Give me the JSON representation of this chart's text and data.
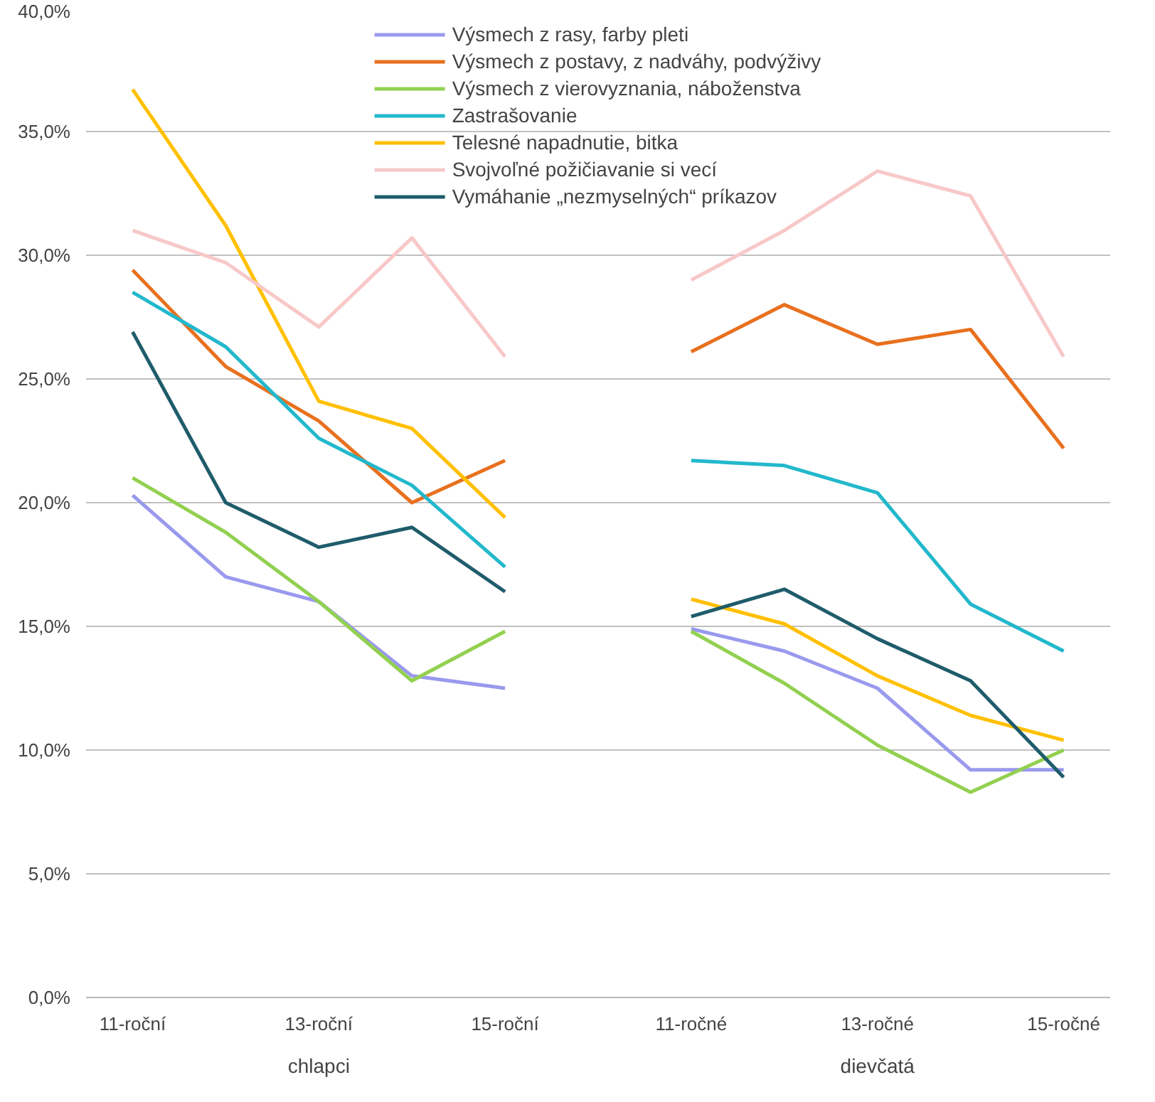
{
  "chart_data": {
    "type": "line",
    "categories": [
      "11-roční",
      null,
      "13-roční",
      null,
      "15-roční",
      null,
      "11-ročné",
      null,
      "13-ročné",
      null,
      "15-ročné"
    ],
    "ylim": [
      0,
      40
    ],
    "yticks": [
      {
        "value": 0,
        "label": "0,0%"
      },
      {
        "value": 5,
        "label": "5,0%"
      },
      {
        "value": 10,
        "label": "10,0%"
      },
      {
        "value": 15,
        "label": "15,0%"
      },
      {
        "value": 20,
        "label": "20,0%"
      },
      {
        "value": 25,
        "label": "25,0%"
      },
      {
        "value": 30,
        "label": "30,0%"
      },
      {
        "value": 35,
        "label": "35,0%"
      },
      {
        "value": 40,
        "label": "40,0%"
      }
    ],
    "grid": "y",
    "legend": "top",
    "marker": "none",
    "line_style": "solid",
    "annotations": [
      "chlapci",
      "dievčatá"
    ],
    "series": [
      {
        "name": "Výsmech z rasy, farby pleti",
        "color": "#9999ee",
        "values": [
          20.3,
          17.0,
          16.0,
          13.0,
          12.5,
          null,
          14.9,
          14.0,
          12.5,
          9.2,
          9.2
        ]
      },
      {
        "name": "Výsmech z postavy, z nadváhy, podvýživy",
        "color": "#e8701e",
        "values": [
          29.4,
          25.5,
          23.3,
          20.0,
          21.7,
          null,
          26.1,
          28.0,
          26.4,
          27.0,
          22.2
        ]
      },
      {
        "name": "Výsmech z vierovyznania, náboženstva",
        "color": "#92d050",
        "values": [
          21.0,
          18.8,
          16.0,
          12.8,
          14.8,
          null,
          14.8,
          12.7,
          10.2,
          8.3,
          10.0
        ]
      },
      {
        "name": "Zastrašovanie",
        "color": "#22b8cc",
        "values": [
          28.5,
          26.3,
          22.6,
          20.7,
          17.4,
          null,
          21.7,
          21.5,
          20.4,
          15.9,
          14.0
        ]
      },
      {
        "name": "Telesné napadnutie, bitka",
        "color": "#ffc000",
        "values": [
          36.7,
          31.2,
          24.1,
          23.0,
          19.4,
          null,
          16.1,
          15.1,
          13.0,
          11.4,
          10.4
        ]
      },
      {
        "name": "Svojvoľné požičiavanie si vecí",
        "color": "#f8c8c8",
        "values": [
          31.0,
          29.7,
          27.1,
          30.7,
          25.9,
          null,
          29.0,
          31.0,
          33.4,
          32.4,
          25.9
        ]
      },
      {
        "name": "Vymáhanie „nezmyselných“ príkazov",
        "color": "#1f5c6b",
        "values": [
          26.9,
          20.0,
          18.2,
          19.0,
          16.4,
          null,
          15.4,
          16.5,
          14.5,
          12.8,
          8.9
        ]
      }
    ]
  }
}
